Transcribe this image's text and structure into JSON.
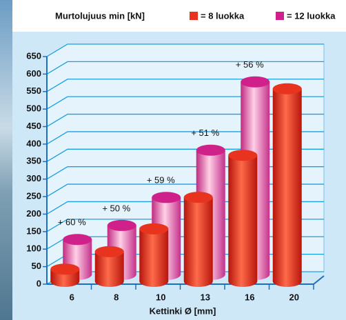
{
  "chart_data": {
    "type": "bar3d",
    "title": "Murtolujuus min  [kN]",
    "x_label": "Kettinki Ø [mm]",
    "categories": [
      "6",
      "8",
      "10",
      "13",
      "16",
      "20"
    ],
    "series": [
      {
        "name": "= 8 luokka",
        "color": "#e8331f",
        "values": [
          35,
          85,
          150,
          240,
          360,
          550
        ]
      },
      {
        "name": "= 12 luokka",
        "color": "#d0208a",
        "values": [
          100,
          140,
          220,
          355,
          550,
          null
        ]
      }
    ],
    "annotations": [
      "+ 60 %",
      "+ 50 %",
      "+ 59 %",
      "+ 51 %",
      "+ 56 %"
    ],
    "ylim": [
      0,
      650
    ],
    "yticks": [
      0,
      50,
      100,
      150,
      200,
      250,
      300,
      350,
      400,
      450,
      500,
      550,
      600,
      650
    ],
    "grid": true
  }
}
